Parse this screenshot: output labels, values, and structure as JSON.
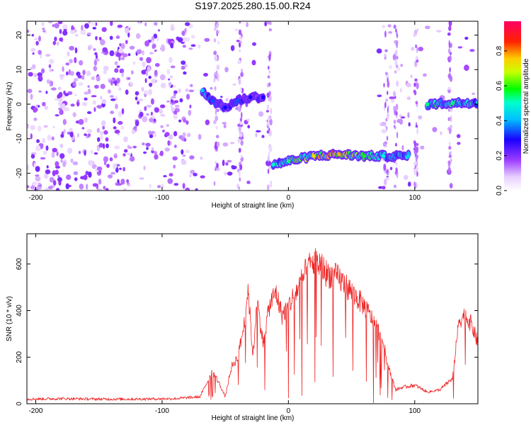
{
  "title": "S197.2025.280.15.00.R24",
  "chart_data": [
    {
      "type": "heatmap",
      "xlabel": "Height of straight line (km)",
      "ylabel": "Frequency (Hz)",
      "xlim": [
        -207,
        150
      ],
      "ylim": [
        -25,
        24
      ],
      "xticks": [
        -200,
        -100,
        0,
        100
      ],
      "yticks": [
        -20,
        -10,
        0,
        10,
        20
      ],
      "colorbar": {
        "label": "Normalized spectral amplitude",
        "range": [
          0,
          0.97
        ],
        "ticks": [
          0.0,
          0.2,
          0.4,
          0.6,
          0.8
        ],
        "colormap": [
          "#ffffff",
          "#d9b3ff",
          "#7f00ff",
          "#0000ff",
          "#00ffff",
          "#00ff00",
          "#ffff00",
          "#ff0000",
          "#ff0066"
        ]
      },
      "signal_track": [
        {
          "x": -68,
          "freq": 4,
          "amp": 0.45
        },
        {
          "x": -60,
          "freq": 1,
          "amp": 0.35
        },
        {
          "x": -50,
          "freq": -1,
          "amp": 0.3
        },
        {
          "x": -40,
          "freq": 1,
          "amp": 0.35
        },
        {
          "x": -30,
          "freq": 2,
          "amp": 0.3
        },
        {
          "x": -20,
          "freq": 2,
          "amp": 0.3
        },
        {
          "x": -12,
          "freq": -17.5,
          "amp": 0.5
        },
        {
          "x": 0,
          "freq": -16.5,
          "amp": 0.55
        },
        {
          "x": 20,
          "freq": -15,
          "amp": 0.75
        },
        {
          "x": 40,
          "freq": -14.5,
          "amp": 0.8
        },
        {
          "x": 60,
          "freq": -15,
          "amp": 0.6
        },
        {
          "x": 75,
          "freq": -15,
          "amp": 0.5
        },
        {
          "x": 95,
          "freq": -15,
          "amp": 0.45
        },
        {
          "x": 110,
          "freq": 0,
          "amp": 0.55
        },
        {
          "x": 130,
          "freq": 0.3,
          "amp": 0.55
        },
        {
          "x": 150,
          "freq": 0.5,
          "amp": 0.5
        }
      ]
    },
    {
      "type": "line",
      "xlabel": "Height of straight line (km)",
      "ylabel": "SNR (10 * v/v)",
      "xlim": [
        -207,
        150
      ],
      "ylim": [
        0,
        730
      ],
      "xticks": [
        -200,
        -100,
        0,
        100
      ],
      "yticks": [
        0,
        200,
        400,
        600
      ],
      "color": "#ee2222",
      "series": [
        {
          "x": [
            -207,
            -180,
            -150,
            -120,
            -90,
            -70,
            -60,
            -55,
            -50,
            -45,
            -40,
            -35,
            -32,
            -28,
            -25,
            -20,
            -15,
            -10,
            -5,
            0,
            5,
            10,
            15,
            20,
            25,
            30,
            40,
            50,
            60,
            70,
            75,
            80,
            85,
            90,
            100,
            110,
            120,
            130,
            135,
            140,
            145,
            150
          ],
          "y": [
            20,
            22,
            20,
            20,
            22,
            30,
            140,
            90,
            30,
            160,
            200,
            340,
            500,
            200,
            450,
            260,
            420,
            480,
            380,
            420,
            470,
            520,
            580,
            610,
            600,
            560,
            540,
            480,
            420,
            330,
            260,
            140,
            60,
            70,
            80,
            50,
            60,
            110,
            360,
            380,
            340,
            260
          ]
        }
      ]
    }
  ]
}
